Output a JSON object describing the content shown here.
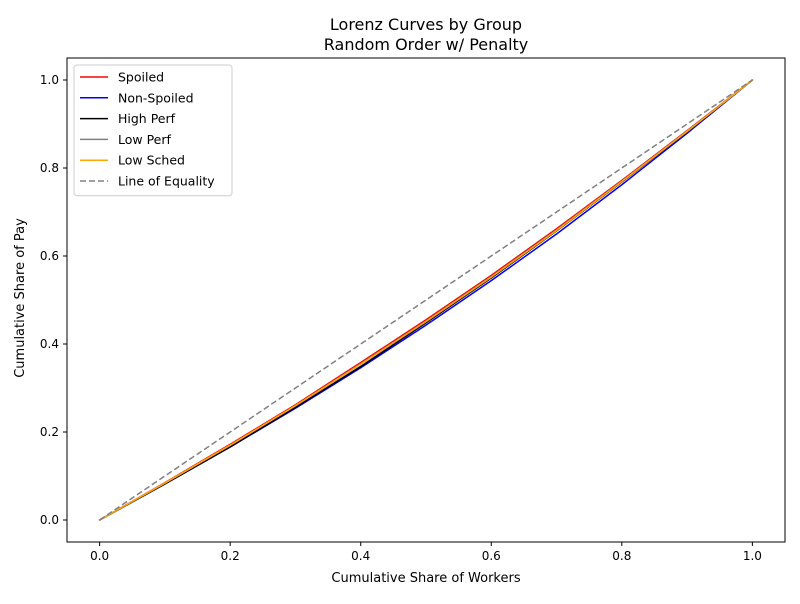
{
  "chart_data": {
    "type": "line",
    "title": "Lorenz Curves by Group",
    "subtitle": "Random Order w/ Penalty",
    "xlabel": "Cumulative Share of Workers",
    "ylabel": "Cumulative Share of Pay",
    "xlim": [
      -0.05,
      1.05
    ],
    "ylim": [
      -0.05,
      1.05
    ],
    "xticks": [
      0.0,
      0.2,
      0.4,
      0.6,
      0.8,
      1.0
    ],
    "yticks": [
      0.0,
      0.2,
      0.4,
      0.6,
      0.8,
      1.0
    ],
    "tick_labels_x": [
      "0.0",
      "0.2",
      "0.4",
      "0.6",
      "0.8",
      "1.0"
    ],
    "tick_labels_y": [
      "0.0",
      "0.2",
      "0.4",
      "0.6",
      "0.8",
      "1.0"
    ],
    "grid": false,
    "legend_position": "top-left",
    "x": [
      0.0,
      0.1,
      0.2,
      0.3,
      0.4,
      0.5,
      0.6,
      0.7,
      0.8,
      0.9,
      1.0
    ],
    "series": [
      {
        "name": "Spoiled",
        "color": "#ff0000",
        "style": "solid",
        "values": [
          0.0,
          0.085,
          0.172,
          0.262,
          0.358,
          0.455,
          0.556,
          0.662,
          0.772,
          0.885,
          1.0
        ]
      },
      {
        "name": "Non-Spoiled",
        "color": "#0000ff",
        "style": "solid",
        "values": [
          0.0,
          0.082,
          0.166,
          0.254,
          0.346,
          0.443,
          0.544,
          0.65,
          0.762,
          0.879,
          1.0
        ]
      },
      {
        "name": "High Perf",
        "color": "#000000",
        "style": "solid",
        "values": [
          0.0,
          0.082,
          0.166,
          0.256,
          0.349,
          0.448,
          0.55,
          0.657,
          0.768,
          0.882,
          1.0
        ]
      },
      {
        "name": "Low Perf",
        "color": "#808080",
        "style": "solid",
        "values": [
          0.0,
          0.084,
          0.17,
          0.26,
          0.355,
          0.452,
          0.553,
          0.659,
          0.77,
          0.884,
          1.0
        ]
      },
      {
        "name": "Low Sched",
        "color": "#ffa500",
        "style": "solid",
        "values": [
          0.0,
          0.084,
          0.17,
          0.26,
          0.354,
          0.451,
          0.552,
          0.658,
          0.769,
          0.883,
          1.0
        ]
      },
      {
        "name": "Line of Equality",
        "color": "#808080",
        "style": "dashed",
        "values": [
          0.0,
          0.1,
          0.2,
          0.3,
          0.4,
          0.5,
          0.6,
          0.7,
          0.8,
          0.9,
          1.0
        ]
      }
    ]
  }
}
